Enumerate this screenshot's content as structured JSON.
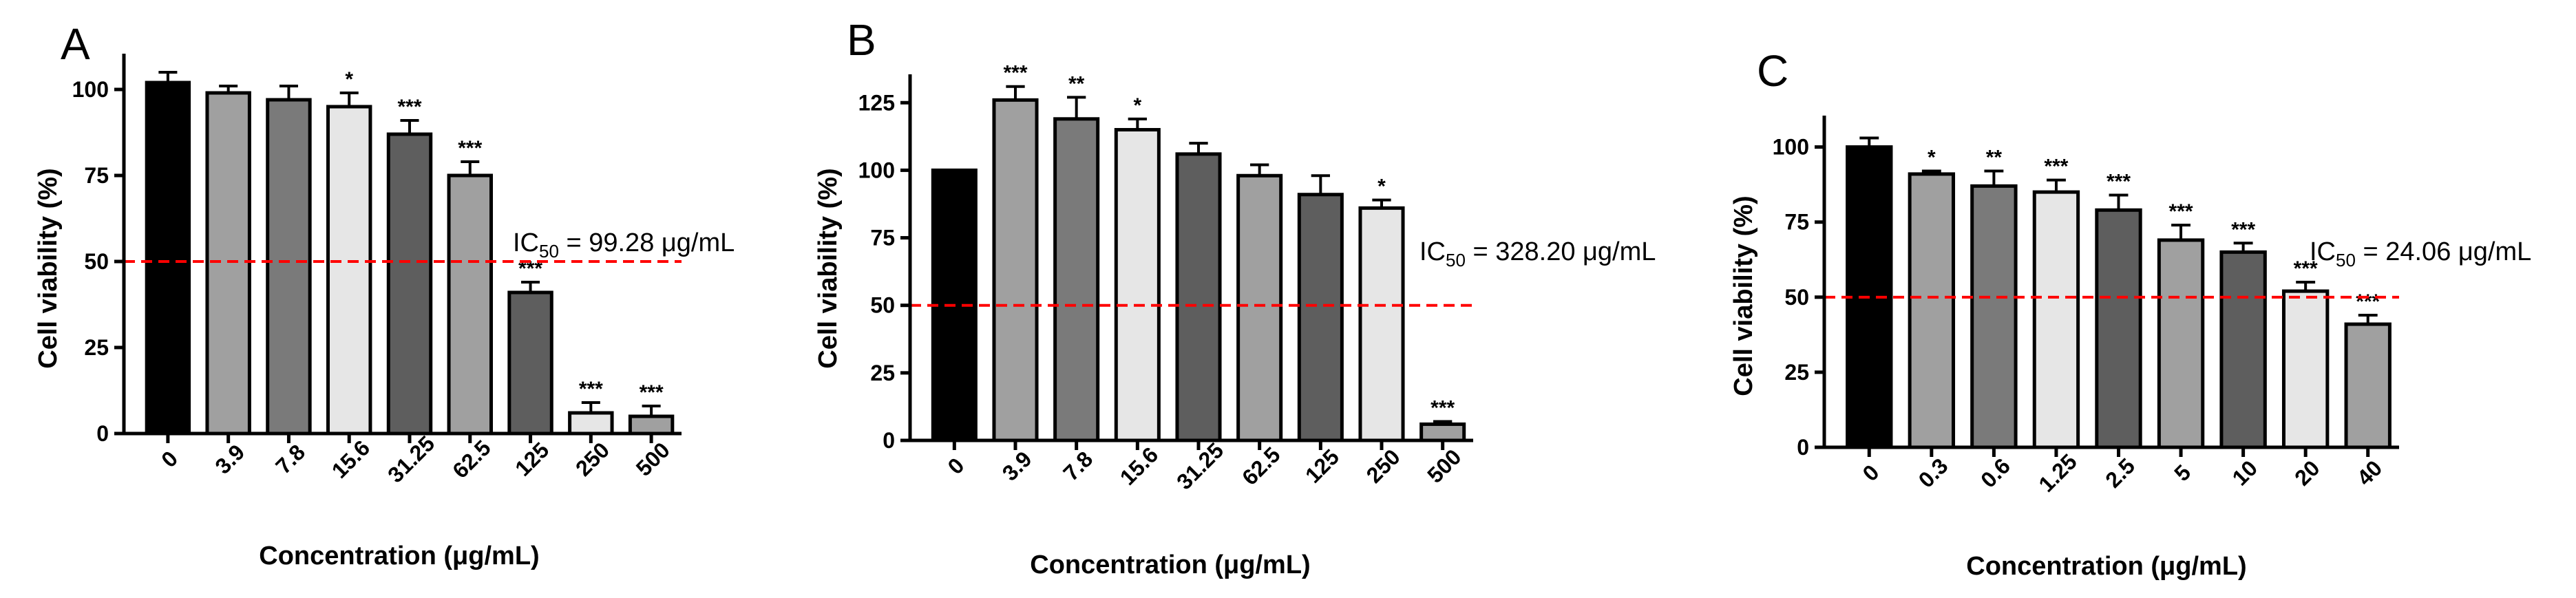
{
  "colors": {
    "control": "#000000",
    "gray_light": "#e6e6e6",
    "gray_mid": "#a0a0a0",
    "gray_dark": "#7a7a7a",
    "gray_darker": "#5e5e5e",
    "threshold": "#ff0000"
  },
  "chart_data": [
    {
      "type": "bar",
      "panel": "A",
      "xlabel": "Concentration (μg/mL)",
      "ylabel": "Cell viability (%)",
      "ylim": [
        0,
        110
      ],
      "yticks": [
        0,
        25,
        50,
        75,
        100
      ],
      "categories": [
        "0",
        "3.9",
        "7.8",
        "15.6",
        "31.25",
        "62.5",
        "125",
        "250",
        "500"
      ],
      "values": [
        102,
        99,
        97,
        95,
        87,
        75,
        41,
        6,
        5
      ],
      "errors": [
        3,
        2,
        4,
        4,
        4,
        4,
        3,
        3,
        3
      ],
      "significance": [
        "",
        "",
        "",
        "*",
        "***",
        "***",
        "***",
        "***",
        "***"
      ],
      "bar_colors": [
        "control",
        "gray_mid",
        "gray_dark",
        "gray_light",
        "gray_darker",
        "gray_mid",
        "gray_darker",
        "gray_light",
        "gray_mid"
      ],
      "threshold": 50,
      "ic50_prefix": "IC",
      "ic50_sub": "50",
      "ic50_value": " = 99.28 μg/mL"
    },
    {
      "type": "bar",
      "panel": "B",
      "xlabel": "Concentration (μg/mL)",
      "ylabel": "Cell viability (%)",
      "ylim": [
        0,
        135
      ],
      "yticks": [
        0,
        25,
        50,
        75,
        100,
        125
      ],
      "categories": [
        "0",
        "3.9",
        "7.8",
        "15.6",
        "31.25",
        "62.5",
        "125",
        "250",
        "500"
      ],
      "values": [
        100,
        126,
        119,
        115,
        106,
        98,
        91,
        86,
        6
      ],
      "errors": [
        0,
        5,
        8,
        4,
        4,
        4,
        7,
        3,
        1
      ],
      "significance": [
        "",
        "***",
        "**",
        "*",
        "",
        "",
        "",
        "*",
        "***"
      ],
      "bar_colors": [
        "control",
        "gray_mid",
        "gray_dark",
        "gray_light",
        "gray_darker",
        "gray_mid",
        "gray_darker",
        "gray_light",
        "gray_mid"
      ],
      "threshold": 50,
      "ic50_prefix": "IC",
      "ic50_sub": "50",
      "ic50_value": " = 328.20 μg/mL"
    },
    {
      "type": "bar",
      "panel": "C",
      "xlabel": "Concentration (μg/mL)",
      "ylabel": "Cell viability (%)",
      "ylim": [
        0,
        110
      ],
      "yticks": [
        0,
        25,
        50,
        75,
        100
      ],
      "categories": [
        "0",
        "0.3",
        "0.6",
        "1.25",
        "2.5",
        "5",
        "10",
        "20",
        "40"
      ],
      "values": [
        100,
        91,
        87,
        85,
        79,
        69,
        65,
        52,
        41
      ],
      "errors": [
        3,
        1,
        5,
        4,
        5,
        5,
        3,
        3,
        3
      ],
      "significance": [
        "",
        "*",
        "**",
        "***",
        "***",
        "***",
        "***",
        "***",
        "***"
      ],
      "bar_colors": [
        "control",
        "gray_mid",
        "gray_dark",
        "gray_light",
        "gray_darker",
        "gray_mid",
        "gray_darker",
        "gray_light",
        "gray_mid"
      ],
      "threshold": 50,
      "ic50_prefix": "IC",
      "ic50_sub": "50",
      "ic50_value": " = 24.06 μg/mL"
    }
  ]
}
